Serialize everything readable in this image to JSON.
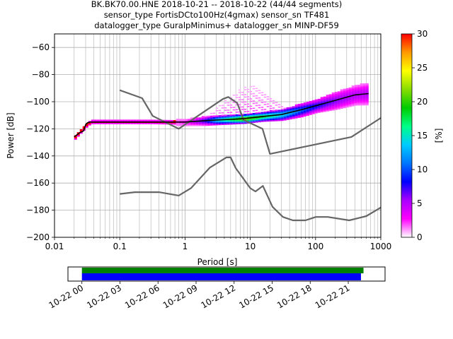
{
  "figure": {
    "title_lines": [
      "BK.BK70.00.HNE   2018-10-21 -- 2018-10-22  (44/44 segments)",
      "sensor_type FortisDCto100Hz(4gmax) sensor_sn TF481",
      "datalogger_type GuralpMinimus+ datalogger_sn MINP-DF59"
    ]
  },
  "chart_data": [
    {
      "type": "heatmap",
      "subtype": "probabilistic-power-spectral-density",
      "xlabel": "Period [s]",
      "ylabel": "Power [dB]",
      "xscale": "log",
      "xlim": [
        0.01,
        1000
      ],
      "ylim": [
        -200,
        -50
      ],
      "xticks": [
        0.01,
        0.1,
        1,
        10,
        100,
        1000
      ],
      "xtick_labels": [
        "0.01",
        "0.1",
        "1",
        "10",
        "100",
        "1000"
      ],
      "yticks": [
        -200,
        -180,
        -160,
        -140,
        -120,
        -100,
        -80,
        -60
      ],
      "ytick_labels": [
        "−200",
        "−180",
        "−160",
        "−140",
        "−120",
        "−100",
        "−80",
        "−60"
      ],
      "grid": true,
      "colorbar": {
        "label": "[%]",
        "range": [
          0,
          30
        ],
        "ticks": [
          0,
          5,
          10,
          15,
          20,
          25,
          30
        ],
        "tick_labels": [
          "0",
          "5",
          "10",
          "15",
          "20",
          "25",
          "30"
        ],
        "colormap": [
          "#ffffff",
          "#ff00ff",
          "#aa00ff",
          "#0000ff",
          "#0077ff",
          "#00ccff",
          "#00ff88",
          "#00cc00",
          "#88dd00",
          "#ffff00",
          "#ff9900",
          "#ff0000"
        ]
      },
      "series": [
        {
          "role": "new-high-noise-model",
          "color": "#666666",
          "x": [
            0.1,
            0.22,
            0.32,
            0.8,
            3.8,
            4.6,
            6.3,
            7.9,
            15.4,
            20,
            354.8,
            1000
          ],
          "y": [
            -91.5,
            -97.4,
            -110.5,
            -120,
            -98,
            -96.5,
            -101,
            -113.5,
            -120,
            -138.5,
            -126,
            -112
          ]
        },
        {
          "role": "new-low-noise-model",
          "color": "#666666",
          "x": [
            0.1,
            0.17,
            0.4,
            0.8,
            1.24,
            2.4,
            4.3,
            5,
            6,
            10,
            12,
            15.6,
            21.9,
            31.6,
            45,
            70,
            101,
            154,
            328,
            600,
            1000
          ],
          "y": [
            -168,
            -166.7,
            -166.7,
            -169.2,
            -163.7,
            -148.6,
            -141.1,
            -141.1,
            -149,
            -163.8,
            -166.2,
            -162.1,
            -177.5,
            -185,
            -187.5,
            -187.5,
            -185,
            -185,
            -187.5,
            -184.4,
            -178
          ]
        },
        {
          "role": "mode-curve",
          "color": "#000000",
          "x": [
            0.02,
            0.024,
            0.028,
            0.03,
            0.032,
            0.035,
            0.05,
            0.1,
            0.3,
            1,
            2,
            3,
            5,
            8,
            15,
            30,
            60,
            100,
            200,
            400,
            650
          ],
          "y": [
            -126,
            -123,
            -121.5,
            -117,
            -115.5,
            -115,
            -115,
            -115,
            -115,
            -115,
            -114,
            -113.5,
            -113,
            -112.5,
            -111,
            -109.5,
            -106,
            -103,
            -99,
            -95,
            -94
          ]
        }
      ],
      "density_band": [
        {
          "x": 0.02,
          "center": -126,
          "spread": 1.5,
          "peak": 0
        },
        {
          "x": 0.03,
          "center": -117,
          "spread": 1.5,
          "peak": 0
        },
        {
          "x": 0.035,
          "center": -115,
          "spread": 1.2,
          "peak": 0
        },
        {
          "x": 0.3,
          "center": -115,
          "spread": 1.2,
          "peak": 0
        },
        {
          "x": 1,
          "center": -115,
          "spread": 1.5,
          "peak": 3
        },
        {
          "x": 2,
          "center": -114,
          "spread": 2,
          "peak": 8
        },
        {
          "x": 3,
          "center": -113.5,
          "spread": 2,
          "peak": 14
        },
        {
          "x": 5,
          "center": -113,
          "spread": 2,
          "peak": 18
        },
        {
          "x": 8,
          "center": -112.5,
          "spread": 2,
          "peak": 22
        },
        {
          "x": 15,
          "center": -111,
          "spread": 2,
          "peak": 18
        },
        {
          "x": 30,
          "center": -109.5,
          "spread": 2.5,
          "peak": 14
        },
        {
          "x": 60,
          "center": -106,
          "spread": 3,
          "peak": 10
        },
        {
          "x": 100,
          "center": -103,
          "spread": 3,
          "peak": 8
        },
        {
          "x": 200,
          "center": -99,
          "spread": 4,
          "peak": 6
        },
        {
          "x": 400,
          "center": -95,
          "spread": 4.5,
          "peak": 5
        },
        {
          "x": 650,
          "center": -94,
          "spread": 5,
          "peak": 5
        }
      ],
      "microseism_lobe": [
        {
          "x": 1.5,
          "top": -114
        },
        {
          "x": 2,
          "top": -110
        },
        {
          "x": 3,
          "top": -104
        },
        {
          "x": 4,
          "top": -99
        },
        {
          "x": 5.5,
          "top": -94
        },
        {
          "x": 7,
          "top": -90
        },
        {
          "x": 10,
          "top": -88
        },
        {
          "x": 14,
          "top": -90
        },
        {
          "x": 20,
          "top": -95
        },
        {
          "x": 30,
          "top": -101
        },
        {
          "x": 45,
          "top": -105
        },
        {
          "x": 70,
          "top": -107
        }
      ]
    },
    {
      "type": "timeline",
      "subtype": "data-coverage",
      "xtick_labels": [
        "10-22 00",
        "10-22 03",
        "10-22 06",
        "10-22 09",
        "10-22 12",
        "10-22 15",
        "10-22 18",
        "10-22 21"
      ],
      "tick_hours": [
        0,
        3,
        6,
        9,
        12,
        15,
        18,
        21
      ],
      "xlim_hours": [
        -1.1,
        23.9
      ],
      "bars": [
        {
          "role": "data-availability",
          "color": "#008000",
          "start_hour": 0,
          "end_hour": 22.2
        },
        {
          "role": "ppsd-processed",
          "color": "#0000ff",
          "start_hour": 0,
          "end_hour": 22.0
        }
      ]
    }
  ]
}
